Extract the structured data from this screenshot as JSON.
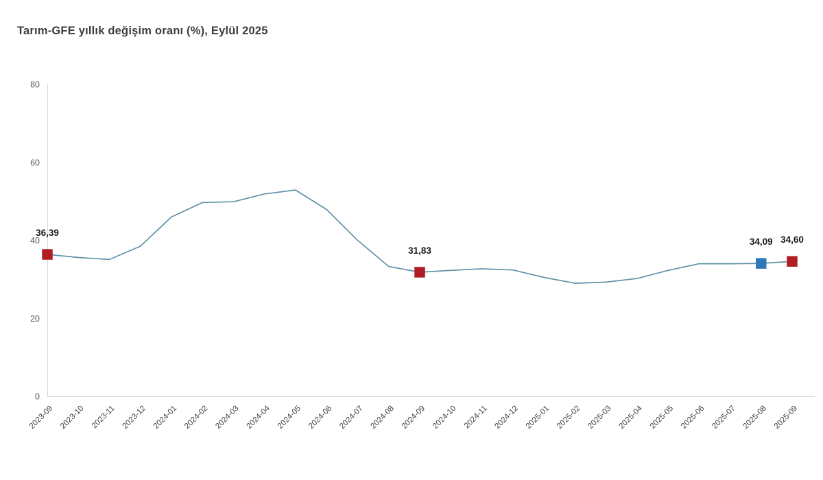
{
  "chart_data": {
    "type": "line",
    "title": "Tarım-GFE yıllık değişim oranı (%), Eylül 2025",
    "categories": [
      "2023-09",
      "2023-10",
      "2023-11",
      "2023-12",
      "2024-01",
      "2024-02",
      "2024-03",
      "2024-04",
      "2024-05",
      "2024-06",
      "2024-07",
      "2024-08",
      "2024-09",
      "2024-10",
      "2024-11",
      "2024-12",
      "2025-01",
      "2025-02",
      "2025-03",
      "2025-04",
      "2025-05",
      "2025-06",
      "2025-07",
      "2025-08",
      "2025-09"
    ],
    "values": [
      36.39,
      35.6,
      35.1,
      38.5,
      46.0,
      49.7,
      49.9,
      51.9,
      52.9,
      47.9,
      40.0,
      33.3,
      31.83,
      32.3,
      32.7,
      32.4,
      30.5,
      29.0,
      29.3,
      30.2,
      32.3,
      34.0,
      34.0,
      34.09,
      34.6
    ],
    "ylim": [
      0,
      80
    ],
    "yticks": [
      0,
      20,
      40,
      60,
      80
    ],
    "grid": false,
    "legend": false,
    "xlabel": "",
    "ylabel": "",
    "line_color": "#6091a6",
    "axis_color": "#d6d6d6",
    "y_tick_label_color": "#595959",
    "x_tick_label_color": "#404040",
    "point_label_color": "#1a1a1a",
    "markers": [
      {
        "category": "2023-09",
        "label": "36,39",
        "color": "#b01e23"
      },
      {
        "category": "2024-09",
        "label": "31,83",
        "color": "#b01e23"
      },
      {
        "category": "2025-08",
        "label": "34,09",
        "color": "#2f79b9"
      },
      {
        "category": "2025-09",
        "label": "34,60",
        "color": "#b01e23"
      }
    ]
  }
}
